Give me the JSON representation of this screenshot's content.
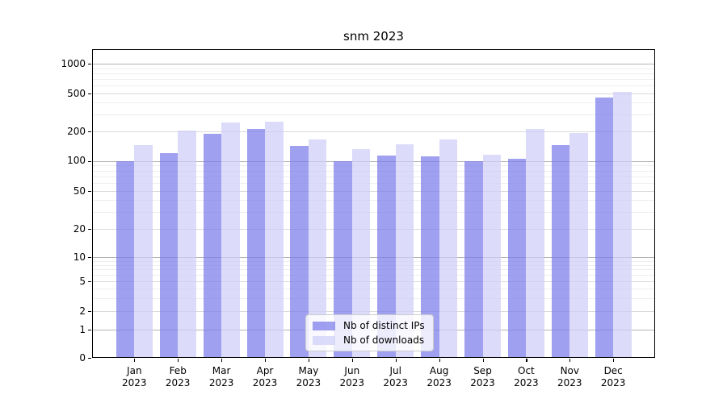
{
  "title": "snm 2023",
  "chart_data": {
    "type": "bar",
    "title": "snm 2023",
    "categories": [
      "Jan",
      "Feb",
      "Mar",
      "Apr",
      "May",
      "Jun",
      "Jul",
      "Aug",
      "Sep",
      "Oct",
      "Nov",
      "Dec"
    ],
    "year_label": "2023",
    "series": [
      {
        "name": "Nb of distinct IPs",
        "color": "#7b7bea",
        "values": [
          100,
          120,
          190,
          212,
          143,
          100,
          113,
          110,
          100,
          105,
          145,
          455
        ]
      },
      {
        "name": "Nb of downloads",
        "color": "#cecef8",
        "values": [
          145,
          202,
          250,
          255,
          166,
          131,
          147,
          165,
          115,
          212,
          193,
          520
        ]
      }
    ],
    "bar_alpha": 0.72,
    "xlabel": "",
    "ylabel": "",
    "yscale": "symlog",
    "yticks": [
      0,
      1,
      2,
      5,
      10,
      20,
      50,
      100,
      200,
      500,
      1000
    ],
    "ylim": [
      0,
      1300
    ],
    "grid": true,
    "legend_position": "lower center"
  },
  "colors": {
    "background": "#ffffff",
    "grid_major": "#b3b3b3",
    "grid_sub": "#dadada",
    "grid_minor": "#eeeeee",
    "axis": "#000000"
  }
}
